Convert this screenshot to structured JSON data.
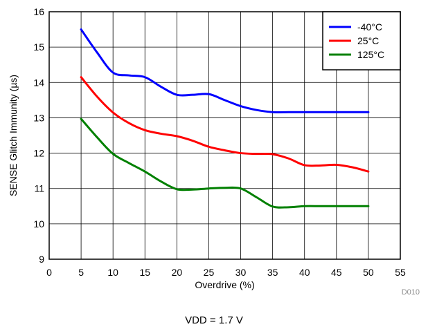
{
  "chart_data": {
    "type": "line",
    "xlabel": "Overdrive (%)",
    "ylabel": "SENSE Glitch Immunity (µs)",
    "xlim": [
      0,
      55
    ],
    "ylim": [
      9,
      16
    ],
    "xticks": [
      0,
      5,
      10,
      15,
      20,
      25,
      30,
      35,
      40,
      45,
      50,
      55
    ],
    "yticks": [
      9,
      10,
      11,
      12,
      13,
      14,
      15,
      16
    ],
    "grid": true,
    "legend_position": "top-right",
    "series": [
      {
        "name": "-40°C",
        "color": "#0000ff",
        "x": [
          5,
          7.5,
          10,
          12.5,
          15,
          17.5,
          20,
          22.5,
          25,
          27.5,
          30,
          32.5,
          35,
          37.5,
          40,
          42.5,
          45,
          47.5,
          50
        ],
        "y": [
          15.5,
          14.85,
          14.28,
          14.2,
          14.15,
          13.88,
          13.65,
          13.65,
          13.67,
          13.5,
          13.33,
          13.22,
          13.16,
          13.16,
          13.16,
          13.16,
          13.16,
          13.16,
          13.16
        ]
      },
      {
        "name": "25°C",
        "color": "#ff0000",
        "x": [
          5,
          7.5,
          10,
          12.5,
          15,
          17.5,
          20,
          22.5,
          25,
          27.5,
          30,
          32.5,
          35,
          37.5,
          40,
          42.5,
          45,
          47.5,
          50
        ],
        "y": [
          14.15,
          13.6,
          13.15,
          12.85,
          12.65,
          12.55,
          12.48,
          12.35,
          12.18,
          12.08,
          12.0,
          11.98,
          11.97,
          11.85,
          11.66,
          11.65,
          11.67,
          11.6,
          11.48
        ]
      },
      {
        "name": "125°C",
        "color": "#008000",
        "x": [
          5,
          7.5,
          10,
          12.5,
          15,
          17.5,
          20,
          22.5,
          25,
          27.5,
          30,
          32.5,
          35,
          37.5,
          40,
          42.5,
          45,
          47.5,
          50
        ],
        "y": [
          12.97,
          12.45,
          11.98,
          11.72,
          11.48,
          11.2,
          10.98,
          10.97,
          11.0,
          11.02,
          11.0,
          10.75,
          10.49,
          10.47,
          10.5,
          10.5,
          10.5,
          10.5,
          10.5
        ]
      }
    ]
  },
  "figure_id": "D010",
  "caption": "VDD = 1.7 V"
}
